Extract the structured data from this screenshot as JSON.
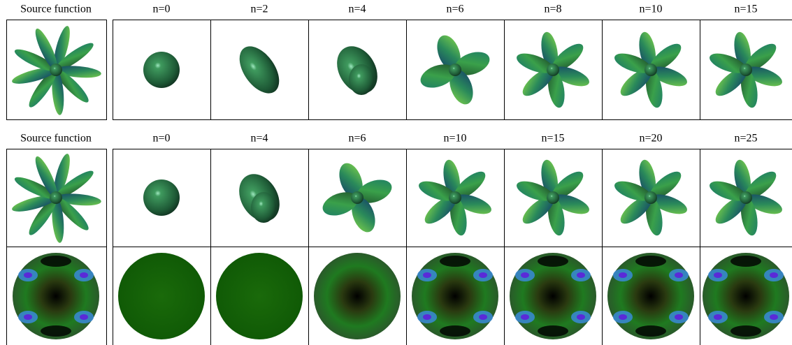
{
  "rows": [
    {
      "source_label": "Source function",
      "labels": [
        "n=0",
        "n=2",
        "n=4",
        "n=6",
        "n=8",
        "n=10",
        "n=15"
      ]
    },
    {
      "source_label": "Source function",
      "labels": [
        "n=0",
        "n=4",
        "n=6",
        "n=10",
        "n=15",
        "n=20",
        "n=25"
      ]
    }
  ]
}
